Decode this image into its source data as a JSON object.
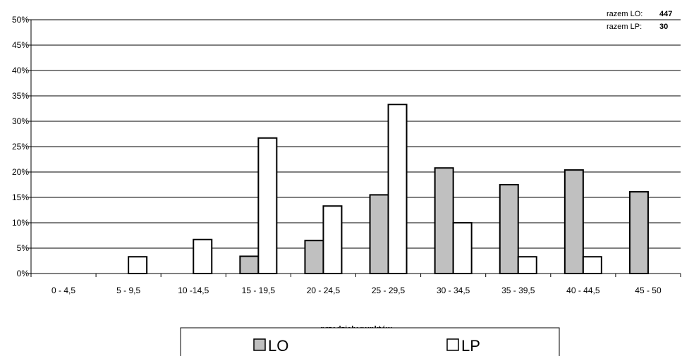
{
  "chart_data": {
    "type": "bar",
    "title": "",
    "xlabel": "przedziały punktów",
    "ylabel": "",
    "categories": [
      "0 - 4,5",
      "5 - 9,5",
      "10 -14,5",
      "15 - 19,5",
      "20 - 24,5",
      "25 - 29,5",
      "30 - 34,5",
      "35 - 39,5",
      "40 - 44,5",
      "45 - 50"
    ],
    "series": [
      {
        "name": "LO",
        "color": "#c0c0c0",
        "values": [
          0,
          0,
          0,
          3.4,
          6.5,
          15.5,
          20.8,
          17.5,
          20.4,
          16.1
        ]
      },
      {
        "name": "LP",
        "color": "#ffffff",
        "values": [
          0,
          3.3,
          6.7,
          26.7,
          13.3,
          33.3,
          10.0,
          3.3,
          3.3,
          0
        ]
      }
    ],
    "ylim": [
      0,
      50
    ],
    "yticks": [
      "0%",
      "5%",
      "10%",
      "15%",
      "20%",
      "25%",
      "30%",
      "35%",
      "40%",
      "45%",
      "50%"
    ],
    "grid": true,
    "legend_position": "bottom-center",
    "annotations": {
      "lo_label": "razem LO:",
      "lo_total": "447",
      "lp_label": "razem LP:",
      "lp_total": "30"
    }
  }
}
